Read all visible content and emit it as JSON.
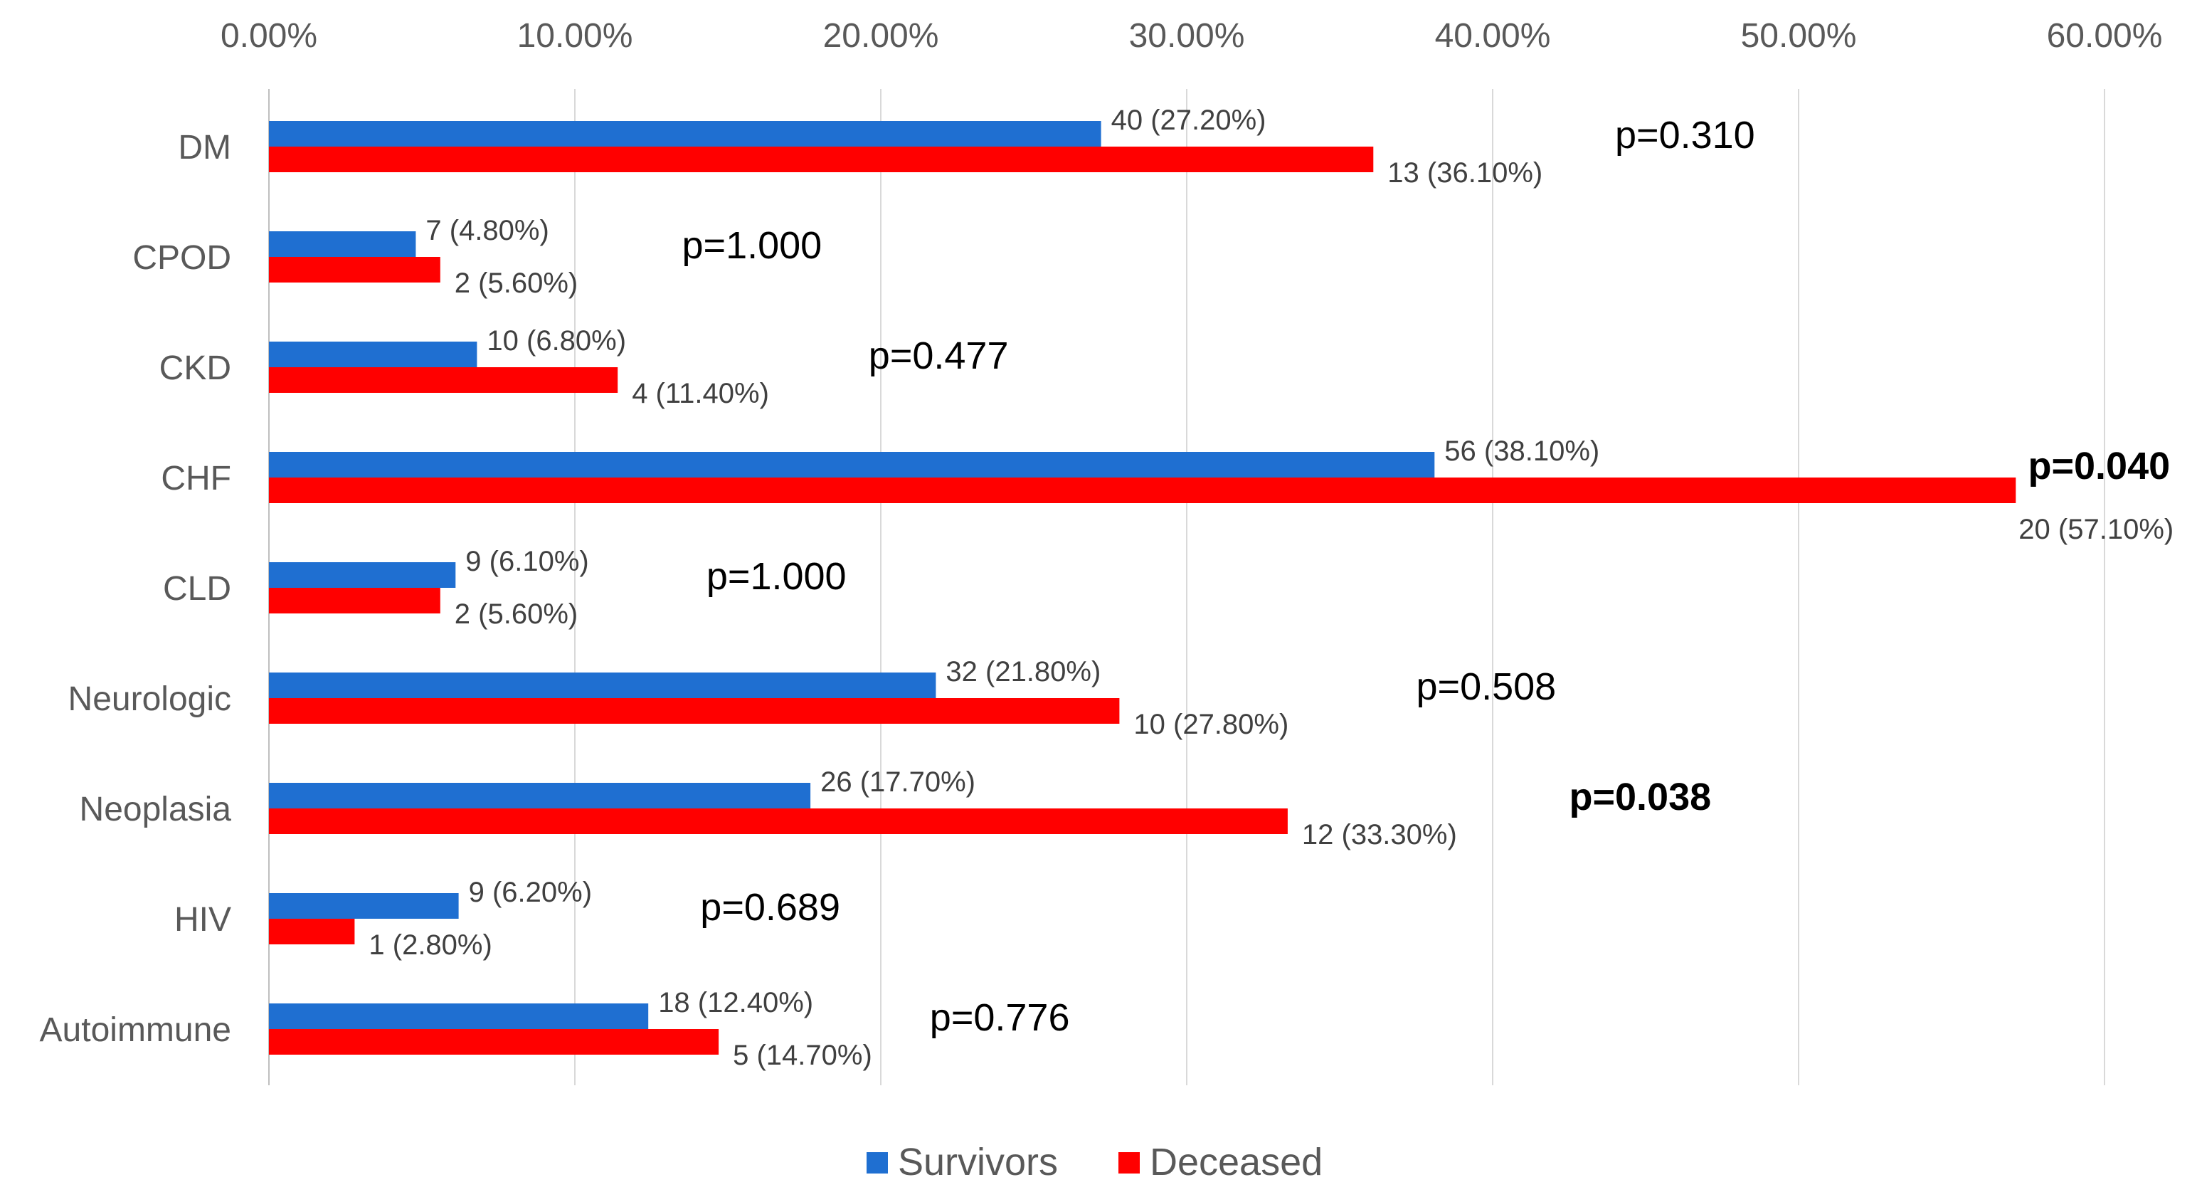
{
  "chart_data": {
    "type": "bar",
    "orientation": "horizontal",
    "title": "",
    "xlabel": "",
    "ylabel": "",
    "xlim": [
      0,
      60
    ],
    "x_ticks": [
      "0.00%",
      "10.00%",
      "20.00%",
      "30.00%",
      "40.00%",
      "50.00%",
      "60.00%"
    ],
    "grid": true,
    "legend_position": "bottom",
    "categories": [
      "DM",
      "CPOD",
      "CKD",
      "CHF",
      "CLD",
      "Neurologic",
      "Neoplasia",
      "HIV",
      "Autoimmune"
    ],
    "series": [
      {
        "name": "Survivors",
        "color": "#1f6fd1",
        "values": [
          27.2,
          4.8,
          6.8,
          38.1,
          6.1,
          21.8,
          17.7,
          6.2,
          12.4
        ],
        "labels": [
          "40 (27.20%)",
          "7 (4.80%)",
          "10 (6.80%)",
          "56 (38.10%)",
          "9 (6.10%)",
          "32 (21.80%)",
          "26 (17.70%)",
          "9 (6.20%)",
          "18 (12.40%)"
        ]
      },
      {
        "name": "Deceased",
        "color": "#ff0000",
        "values": [
          36.1,
          5.6,
          11.4,
          57.1,
          5.6,
          27.8,
          33.3,
          2.8,
          14.7
        ],
        "labels": [
          "13 (36.10%)",
          "2 (5.60%)",
          "4 (11.40%)",
          "20 (57.10%)",
          "2 (5.60%)",
          "10 (27.80%)",
          "12 (33.30%)",
          "1 (2.80%)",
          "5 (14.70%)"
        ]
      }
    ],
    "p_values": [
      {
        "text": "p=0.310",
        "x": 44,
        "bold": false
      },
      {
        "text": "p=1.000",
        "x": 13.5,
        "bold": false
      },
      {
        "text": "p=0.477",
        "x": 19.6,
        "bold": false
      },
      {
        "text": "p=0.040",
        "x": 57.5,
        "bold": true
      },
      {
        "text": "p=1.000",
        "x": 14.3,
        "bold": false
      },
      {
        "text": "p=0.508",
        "x": 37.5,
        "bold": false
      },
      {
        "text": "p=0.038",
        "x": 42.5,
        "bold": true
      },
      {
        "text": "p=0.689",
        "x": 14.1,
        "bold": false
      },
      {
        "text": "p=0.776",
        "x": 21.6,
        "bold": false
      }
    ]
  }
}
